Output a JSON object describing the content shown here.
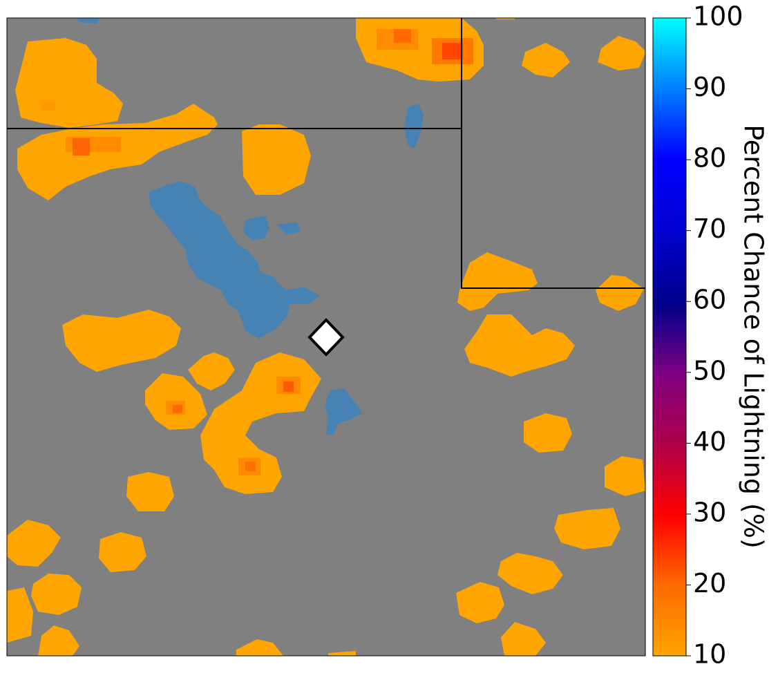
{
  "colorbar": {
    "title": "Percent Chance of Lightning (%)",
    "ticks": [
      "100",
      "90",
      "80",
      "70",
      "60",
      "50",
      "40",
      "30",
      "20",
      "10"
    ],
    "min": 10,
    "max": 100,
    "colors": [
      "#ffa500",
      "#ff8000",
      "#ff4000",
      "#ff0000",
      "#c00040",
      "#8b0080",
      "#4b0090",
      "#00008b",
      "#0000c8",
      "#0000ff",
      "#0080ff",
      "#00ffff"
    ]
  },
  "map": {
    "background_color": "#808080",
    "water_color": "#4682b4",
    "low_probability_color": "#ffa500",
    "marker": "white diamond location marker"
  }
}
